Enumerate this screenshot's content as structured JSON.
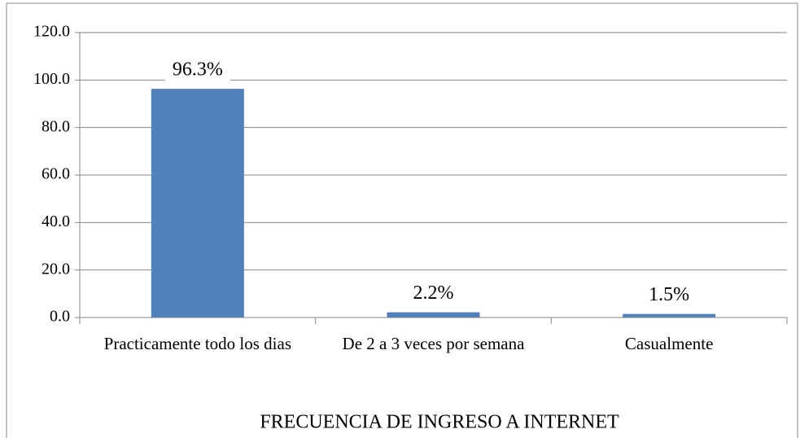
{
  "chart_data": {
    "type": "bar",
    "categories": [
      "Practicamente todo los dias",
      "De 2 a 3 veces por semana",
      "Casualmente"
    ],
    "values": [
      96.3,
      2.2,
      1.5
    ],
    "value_labels": [
      "96.3%",
      "2.2%",
      "1.5%"
    ],
    "color": "#4f81bd",
    "x_label": "FRECUENCIA DE INGRESO A INTERNET",
    "ylim": [
      0,
      120
    ],
    "yticks": [
      {
        "value": 0,
        "label": "0.0"
      },
      {
        "value": 20,
        "label": "20.0"
      },
      {
        "value": 40,
        "label": "40.0"
      },
      {
        "value": 60,
        "label": "60.0"
      },
      {
        "value": 80,
        "label": "80.0"
      },
      {
        "value": 100,
        "label": "100.0"
      },
      {
        "value": 120,
        "label": "120.0"
      }
    ],
    "grid": true
  }
}
